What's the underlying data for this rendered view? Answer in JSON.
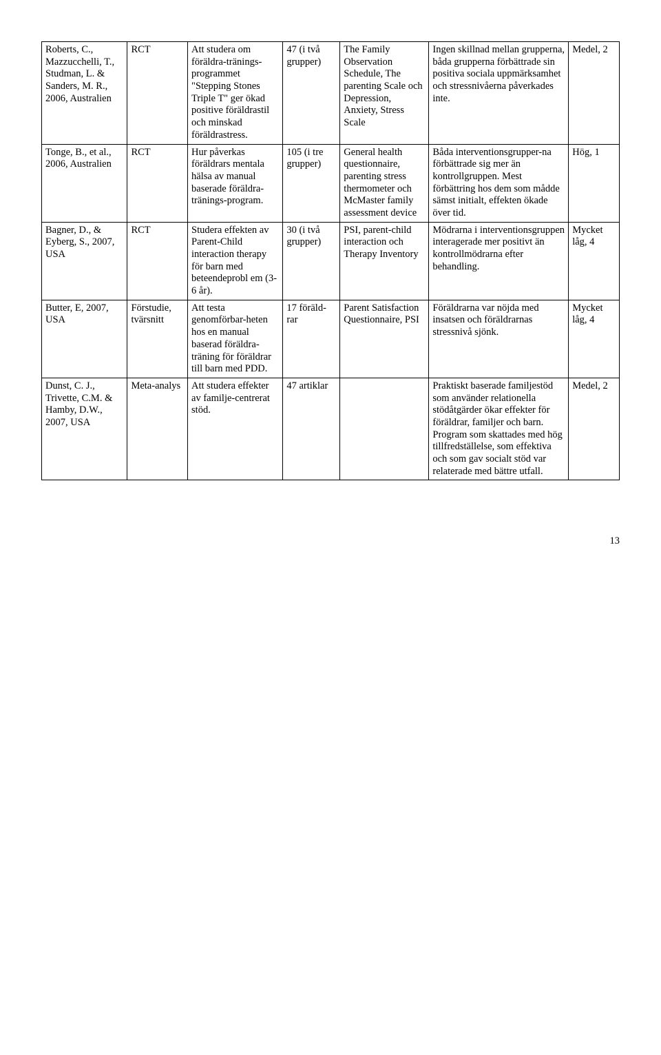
{
  "table": {
    "col_widths": [
      "13.5%",
      "9.5%",
      "15%",
      "9%",
      "14%",
      "22%",
      "8%"
    ],
    "rows": [
      {
        "c0": "Roberts, C., Mazzucchelli, T., Studman, L. & Sanders, M. R., 2006, Australien",
        "c1": "RCT",
        "c2": "Att studera om föräldra-tränings-programmet \"Stepping Stones Triple T\" ger ökad positive föräldrastil och minskad föräldrastress.",
        "c3": "47 (i två grupper)",
        "c4": "The Family Observation Schedule, The parenting Scale och Depression, Anxiety, Stress Scale",
        "c5": "Ingen skillnad mellan grupperna, båda grupperna förbättrade sin positiva sociala uppmärksamhet och stressnivåerna påverkades inte.",
        "c6": "Medel, 2"
      },
      {
        "c0": "Tonge, B., et al., 2006, Australien",
        "c1": "RCT",
        "c2": "Hur påverkas föräldrars mentala hälsa av manual baserade föräldra-tränings-program.",
        "c3": "105 (i tre grupper)",
        "c4": "General health questionnaire, parenting stress thermometer och McMaster family assessment device",
        "c5": "Båda interventionsgrupper-na förbättrade sig mer än kontrollgruppen. Mest förbättring hos dem som mådde sämst initialt, effekten ökade över tid.",
        "c6": "Hög, 1"
      },
      {
        "c0": "Bagner, D., & Eyberg, S., 2007, USA",
        "c1": "RCT",
        "c2": "Studera effekten av Parent-Child interaction therapy för barn med beteendeprobl em (3-6 år).",
        "c3": "30 (i två grupper)",
        "c4": "PSI, parent-child interaction och Therapy Inventory",
        "c5": "Mödrarna i interventionsgruppen interagerade mer positivt än kontrollmödrarna efter behandling.",
        "c6": "Mycket låg, 4"
      },
      {
        "c0": "Butter, E, 2007, USA",
        "c1": "Förstudie, tvärsnitt",
        "c2": "Att testa genomförbar-heten hos en manual baserad föräldra-träning för föräldrar till barn med PDD.",
        "c3": "17 föräld-rar",
        "c4": "Parent Satisfaction Questionnaire, PSI",
        "c5": "Föräldrarna var nöjda med insatsen och föräldrarnas stressnivå sjönk.",
        "c6": "Mycket låg, 4"
      },
      {
        "c0": "Dunst, C. J., Trivette, C.M. & Hamby, D.W., 2007, USA",
        "c1": "Meta-analys",
        "c2": "Att studera effekter av familje-centrerat stöd.",
        "c3": "47 artiklar",
        "c4": "",
        "c5": "Praktiskt baserade familjestöd som använder relationella stödåtgärder ökar effekter för föräldrar, familjer och barn. Program som skattades med hög tillfredställelse, som effektiva och som gav socialt stöd var relaterade med bättre utfall.",
        "c6": "Medel, 2"
      }
    ]
  },
  "page_number": "13"
}
